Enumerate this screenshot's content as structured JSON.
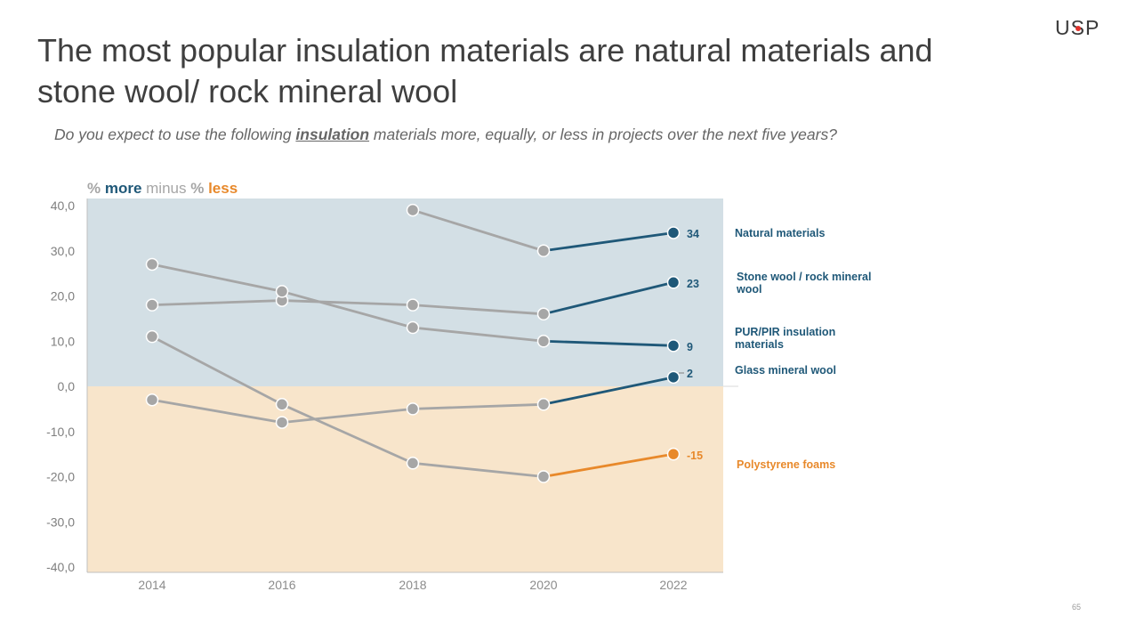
{
  "header": {
    "title": "The most popular insulation materials are natural materials and stone wool/ rock mineral wool",
    "question_pre": "Do you expect to use the following ",
    "question_emph": "insulation",
    "question_post": " materials more, equally, or less in projects over the next five years?",
    "logo": {
      "u": "U",
      "s": "S",
      "p": "P"
    },
    "page_number": "65"
  },
  "colors": {
    "more": "#1f5878",
    "less": "#e8892b",
    "past": "#a6a6a6",
    "positive_zone": "#d3dfe5",
    "negative_zone": "#f8e5cb"
  },
  "chart_data": {
    "type": "line",
    "legend_parts": [
      "% ",
      "more",
      " minus ",
      "% ",
      "less"
    ],
    "x": [
      "2014",
      "2016",
      "2018",
      "2020",
      "2022"
    ],
    "y_ticks": [
      "40,0",
      "30,0",
      "20,0",
      "10,0",
      "0,0",
      "-10,0",
      "-20,0",
      "-30,0",
      "-40,0"
    ],
    "ylim": [
      -40,
      40
    ],
    "series": [
      {
        "name": "Natural materials",
        "values": [
          null,
          null,
          39,
          30,
          34
        ],
        "final_label": "34",
        "tone": "more"
      },
      {
        "name": "Stone wool / rock mineral wool",
        "values": [
          18,
          19,
          18,
          16,
          23
        ],
        "final_label": "23",
        "tone": "more"
      },
      {
        "name": "PUR/PIR insulation materials",
        "values": [
          27,
          21,
          13,
          10,
          9
        ],
        "final_label": "9",
        "tone": "more"
      },
      {
        "name": "Glass mineral wool",
        "values": [
          -3,
          -8,
          -5,
          -4,
          2
        ],
        "final_label": "2",
        "tone": "more"
      },
      {
        "name": "Polystyrene foams",
        "values": [
          11,
          -4,
          -17,
          -20,
          -15
        ],
        "final_label": "-15",
        "tone": "less"
      }
    ]
  }
}
